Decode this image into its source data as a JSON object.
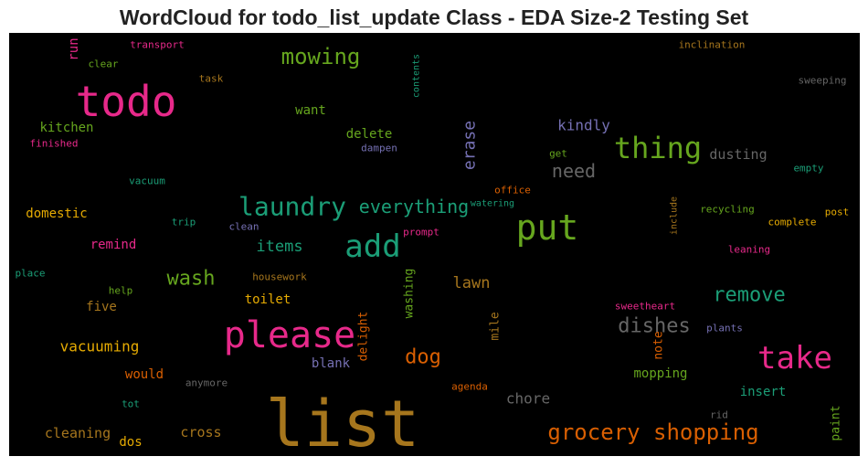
{
  "chart_data": {
    "type": "wordcloud",
    "title": "WordCloud for todo_list_update Class - EDA Size-2 Testing Set",
    "background": "#000000",
    "palette": "Dark2",
    "words": [
      {
        "text": "list",
        "color": "#a6761d"
      },
      {
        "text": "todo",
        "color": "#e7298a"
      },
      {
        "text": "please",
        "color": "#e7298a"
      },
      {
        "text": "put",
        "color": "#66a61e"
      },
      {
        "text": "add",
        "color": "#1b9e77"
      },
      {
        "text": "take",
        "color": "#e7298a"
      },
      {
        "text": "thing",
        "color": "#66a61e"
      },
      {
        "text": "laundry",
        "color": "#1b9e77"
      },
      {
        "text": "grocery shopping",
        "color": "#d95f02"
      },
      {
        "text": "mowing",
        "color": "#66a61e"
      },
      {
        "text": "wash",
        "color": "#66a61e"
      },
      {
        "text": "remove",
        "color": "#1b9e77"
      },
      {
        "text": "dishes",
        "color": "#666666"
      },
      {
        "text": "dog",
        "color": "#d95f02"
      },
      {
        "text": "everything",
        "color": "#1b9e77"
      },
      {
        "text": "need",
        "color": "#666666"
      },
      {
        "text": "items",
        "color": "#1b9e77"
      },
      {
        "text": "erase",
        "color": "#7570b3"
      },
      {
        "text": "lawn",
        "color": "#a6761d"
      },
      {
        "text": "kindly",
        "color": "#7570b3"
      },
      {
        "text": "dusting",
        "color": "#666666"
      },
      {
        "text": "chore",
        "color": "#666666"
      },
      {
        "text": "vacuuming",
        "color": "#e6ab02"
      },
      {
        "text": "cleaning",
        "color": "#a6761d"
      },
      {
        "text": "cross",
        "color": "#a6761d"
      },
      {
        "text": "mopping",
        "color": "#66a61e"
      },
      {
        "text": "domestic",
        "color": "#e6ab02"
      },
      {
        "text": "kitchen",
        "color": "#66a61e"
      },
      {
        "text": "delete",
        "color": "#66a61e"
      },
      {
        "text": "toilet",
        "color": "#e6ab02"
      },
      {
        "text": "insert",
        "color": "#1b9e77"
      },
      {
        "text": "remind",
        "color": "#e7298a"
      },
      {
        "text": "want",
        "color": "#66a61e"
      },
      {
        "text": "five",
        "color": "#a6761d"
      },
      {
        "text": "would",
        "color": "#d95f02"
      },
      {
        "text": "blank",
        "color": "#7570b3"
      },
      {
        "text": "dos",
        "color": "#e6ab02"
      },
      {
        "text": "run",
        "color": "#e7298a"
      },
      {
        "text": "washing",
        "color": "#66a61e"
      },
      {
        "text": "delight",
        "color": "#d95f02"
      },
      {
        "text": "mile",
        "color": "#a6761d"
      },
      {
        "text": "note",
        "color": "#d95f02"
      },
      {
        "text": "paint",
        "color": "#66a61e"
      },
      {
        "text": "office",
        "color": "#d95f02"
      },
      {
        "text": "transport",
        "color": "#e7298a"
      },
      {
        "text": "clear",
        "color": "#66a61e"
      },
      {
        "text": "task",
        "color": "#a6761d"
      },
      {
        "text": "finished",
        "color": "#e7298a"
      },
      {
        "text": "contents",
        "color": "#1b9e77"
      },
      {
        "text": "inclination",
        "color": "#a6761d"
      },
      {
        "text": "sweeping",
        "color": "#666666"
      },
      {
        "text": "dampen",
        "color": "#7570b3"
      },
      {
        "text": "get",
        "color": "#66a61e"
      },
      {
        "text": "empty",
        "color": "#1b9e77"
      },
      {
        "text": "vacuum",
        "color": "#1b9e77"
      },
      {
        "text": "watering",
        "color": "#1b9e77"
      },
      {
        "text": "include",
        "color": "#a6761d"
      },
      {
        "text": "recycling",
        "color": "#66a61e"
      },
      {
        "text": "post",
        "color": "#e6ab02"
      },
      {
        "text": "complete",
        "color": "#e6ab02"
      },
      {
        "text": "trip",
        "color": "#1b9e77"
      },
      {
        "text": "clean",
        "color": "#7570b3"
      },
      {
        "text": "prompt",
        "color": "#e7298a"
      },
      {
        "text": "leaning",
        "color": "#e7298a"
      },
      {
        "text": "place",
        "color": "#1b9e77"
      },
      {
        "text": "housework",
        "color": "#a6761d"
      },
      {
        "text": "help",
        "color": "#66a61e"
      },
      {
        "text": "sweetheart",
        "color": "#e7298a"
      },
      {
        "text": "plants",
        "color": "#7570b3"
      },
      {
        "text": "anymore",
        "color": "#666666"
      },
      {
        "text": "agenda",
        "color": "#d95f02"
      },
      {
        "text": "tot",
        "color": "#1b9e77"
      },
      {
        "text": "rid",
        "color": "#666666"
      }
    ]
  }
}
